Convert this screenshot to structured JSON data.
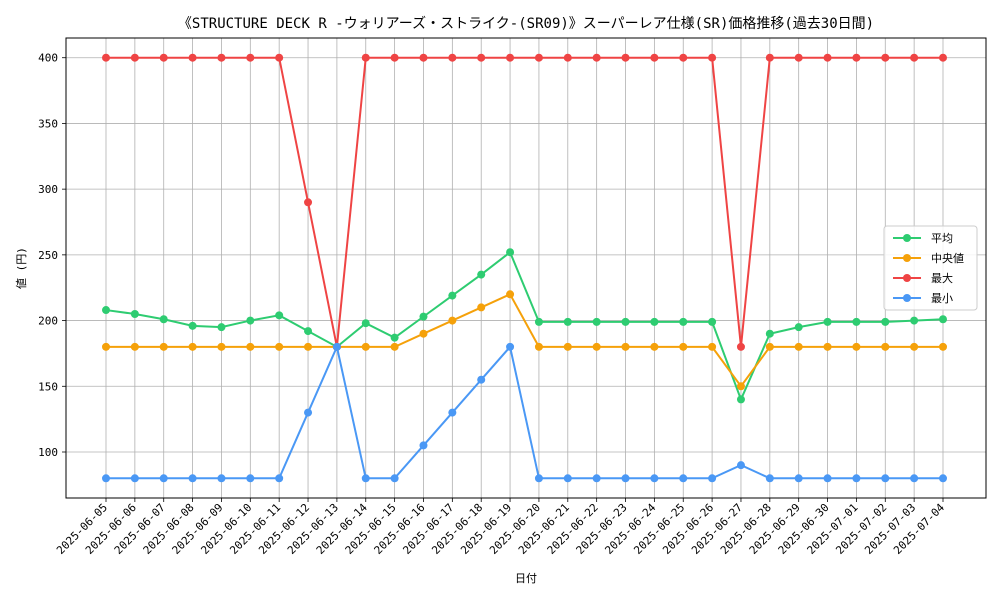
{
  "chart_data": {
    "type": "line",
    "title": "《STRUCTURE DECK R -ウォリアーズ・ストライク-(SR09)》スーパーレア仕様(SR)価格推移(過去30日間)",
    "xlabel": "日付",
    "ylabel": "値 (円)",
    "ylim": [
      65,
      415
    ],
    "yticks": [
      100,
      150,
      200,
      250,
      300,
      350,
      400
    ],
    "grid": true,
    "legend_position": "right",
    "categories": [
      "2025-06-05",
      "2025-06-06",
      "2025-06-07",
      "2025-06-08",
      "2025-06-09",
      "2025-06-10",
      "2025-06-11",
      "2025-06-12",
      "2025-06-13",
      "2025-06-14",
      "2025-06-15",
      "2025-06-16",
      "2025-06-17",
      "2025-06-18",
      "2025-06-19",
      "2025-06-20",
      "2025-06-21",
      "2025-06-22",
      "2025-06-23",
      "2025-06-24",
      "2025-06-25",
      "2025-06-26",
      "2025-06-27",
      "2025-06-28",
      "2025-06-29",
      "2025-06-30",
      "2025-07-01",
      "2025-07-02",
      "2025-07-03",
      "2025-07-04"
    ],
    "series": [
      {
        "name": "平均",
        "color": "#2ecc71",
        "values": [
          208,
          205,
          201,
          196,
          195,
          200,
          204,
          192,
          180,
          198,
          187,
          203,
          219,
          235,
          252,
          199,
          199,
          199,
          199,
          199,
          199,
          199,
          140,
          190,
          195,
          199,
          199,
          199,
          200,
          201
        ]
      },
      {
        "name": "中央値",
        "color": "#f5a10a",
        "values": [
          180,
          180,
          180,
          180,
          180,
          180,
          180,
          180,
          180,
          180,
          180,
          190,
          200,
          210,
          220,
          180,
          180,
          180,
          180,
          180,
          180,
          180,
          150,
          180,
          180,
          180,
          180,
          180,
          180,
          180
        ]
      },
      {
        "name": "最大",
        "color": "#ef4444",
        "values": [
          400,
          400,
          400,
          400,
          400,
          400,
          400,
          290,
          180,
          400,
          400,
          400,
          400,
          400,
          400,
          400,
          400,
          400,
          400,
          400,
          400,
          400,
          180,
          400,
          400,
          400,
          400,
          400,
          400,
          400
        ]
      },
      {
        "name": "最小",
        "color": "#4a98f5",
        "values": [
          80,
          80,
          80,
          80,
          80,
          80,
          80,
          130,
          180,
          80,
          80,
          105,
          130,
          155,
          180,
          80,
          80,
          80,
          80,
          80,
          80,
          80,
          90,
          80,
          80,
          80,
          80,
          80,
          80,
          80
        ]
      }
    ]
  }
}
